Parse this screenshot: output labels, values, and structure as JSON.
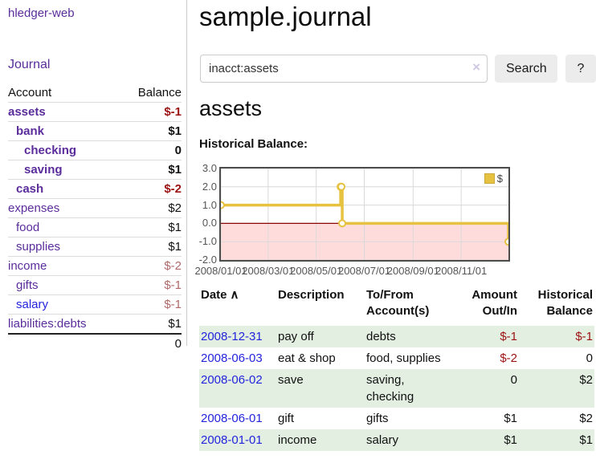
{
  "colors": {
    "purple": "#5a2d9b",
    "blue": "#2424dd",
    "negStrong": "#9d1212",
    "negMuted": "#b06a6a",
    "rowGreen": "#e2efe1",
    "gold": "#e7c240",
    "pink": "#ffdcdc",
    "zeroLine": "#8b0000",
    "grid": "#d9d9d9",
    "btnBg": "#ececec"
  },
  "sidebar": {
    "brand": "hledger-web",
    "journal_link": "Journal",
    "table": {
      "headers": {
        "account": "Account",
        "balance": "Balance"
      },
      "rows": [
        {
          "account": "assets",
          "balance": "$-1",
          "indent": 1,
          "bold": true,
          "link": "purple"
        },
        {
          "account": "bank",
          "balance": "$1",
          "indent": 2,
          "bold": true,
          "link": "purple"
        },
        {
          "account": "checking",
          "balance": "0",
          "indent": 3,
          "bold": true,
          "link": "purple"
        },
        {
          "account": "saving",
          "balance": "$1",
          "indent": 3,
          "bold": true,
          "link": "purple"
        },
        {
          "account": "cash",
          "balance": "$-2",
          "indent": 2,
          "bold": true,
          "link": "purple"
        },
        {
          "account": "expenses",
          "balance": "$2",
          "indent": 1,
          "bold": false,
          "link": "purple"
        },
        {
          "account": "food",
          "balance": "$1",
          "indent": 2,
          "bold": false,
          "link": "purple"
        },
        {
          "account": "supplies",
          "balance": "$1",
          "indent": 2,
          "bold": false,
          "link": "purple"
        },
        {
          "account": "income",
          "balance": "$-2",
          "indent": 1,
          "bold": false,
          "link": "purple"
        },
        {
          "account": "gifts",
          "balance": "$-1",
          "indent": 2,
          "bold": false,
          "link": "purple"
        },
        {
          "account": "salary",
          "balance": "$-1",
          "indent": 2,
          "bold": false,
          "link": "blue"
        },
        {
          "account": "liabilities:debts",
          "balance": "$1",
          "indent": 1,
          "bold": false,
          "link": "purple"
        }
      ],
      "total": "0"
    }
  },
  "main": {
    "title": "sample.journal",
    "search": {
      "value": "inacct:assets",
      "clear_icon": "×",
      "search_button": "Search",
      "help_button": "?"
    },
    "account_heading": "assets",
    "chart_label": "Historical Balance:",
    "register": {
      "headers": {
        "date": "Date",
        "sort_icon": "∧",
        "description": "Description",
        "accounts": "To/From Account(s)",
        "amount": "Amount Out/In",
        "balance": "Historical Balance"
      },
      "rows": [
        {
          "date": "2008-12-31",
          "description": "pay off",
          "accounts": "debts",
          "amount": "$-1",
          "balance": "$-1"
        },
        {
          "date": "2008-06-03",
          "description": "eat & shop",
          "accounts": "food, supplies",
          "amount": "$-2",
          "balance": "0"
        },
        {
          "date": "2008-06-02",
          "description": "save",
          "accounts": "saving, checking",
          "amount": "0",
          "balance": "$2"
        },
        {
          "date": "2008-06-01",
          "description": "gift",
          "accounts": "gifts",
          "amount": "$1",
          "balance": "$2"
        },
        {
          "date": "2008-01-01",
          "description": "income",
          "accounts": "salary",
          "amount": "$1",
          "balance": "$1"
        }
      ]
    }
  },
  "chart_data": {
    "type": "line",
    "title": "Historical Balance:",
    "step": true,
    "series": [
      {
        "name": "$",
        "points": [
          [
            "2008-01-01",
            1
          ],
          [
            "2008-06-01",
            2
          ],
          [
            "2008-06-02",
            2
          ],
          [
            "2008-06-03",
            0
          ],
          [
            "2008-12-31",
            -1
          ]
        ]
      }
    ],
    "xlim": [
      "2008-01-01",
      "2008-12-31"
    ],
    "ylim": [
      -2,
      3
    ],
    "x_ticks": [
      "2008/01/01",
      "2008/03/01",
      "2008/05/01",
      "2008/07/01",
      "2008/09/01",
      "2008/11/01"
    ],
    "y_ticks": [
      3.0,
      2.0,
      1.0,
      0.0,
      -1.0,
      -2.0
    ],
    "grid": true,
    "legend_position": "top-right",
    "negative_region_shaded": true
  }
}
